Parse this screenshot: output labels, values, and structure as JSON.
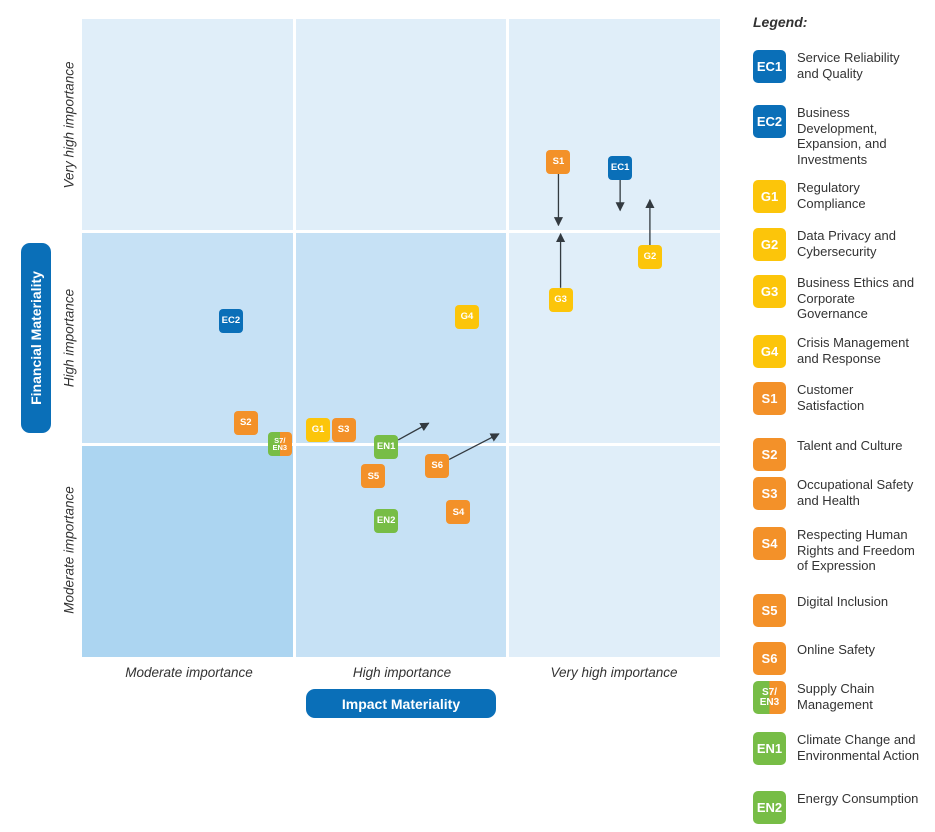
{
  "chart_data": {
    "type": "scatter",
    "title": "",
    "subtitle": "",
    "xlabel": "Impact Materiality",
    "ylabel": "Financial Materiality",
    "x_levels": [
      "Moderate importance",
      "High importance",
      "Very high importance"
    ],
    "y_levels": [
      "Moderate importance",
      "High importance",
      "Very high importance"
    ],
    "xlim": [
      0,
      3
    ],
    "ylim": [
      0,
      3
    ],
    "grid": true,
    "legend_title": "Legend:",
    "legend_position": "right",
    "categories_colors": {
      "EC": "#0a6fb8",
      "G": "#fcc50a",
      "S": "#f39129",
      "EN": "#77bd46"
    },
    "cell_colors": {
      "moderate_moderate": "#acd5f1",
      "high_zone": "#c6e1f5",
      "very_high_zone": "#e0eef9",
      "gridline": "#ffffff"
    },
    "points": [
      {
        "code": "EC1",
        "group": "EC",
        "x": 2.53,
        "y": 2.3
      },
      {
        "code": "EC2",
        "group": "EC",
        "x": 0.7,
        "y": 1.58
      },
      {
        "code": "G1",
        "group": "G",
        "x": 1.11,
        "y": 1.07
      },
      {
        "code": "G2",
        "group": "G",
        "x": 2.67,
        "y": 1.88
      },
      {
        "code": "G3",
        "group": "G",
        "x": 2.25,
        "y": 1.68
      },
      {
        "code": "G4",
        "group": "G",
        "x": 1.81,
        "y": 1.6
      },
      {
        "code": "S1",
        "group": "S",
        "x": 2.24,
        "y": 2.33
      },
      {
        "code": "S2",
        "group": "S",
        "x": 0.77,
        "y": 1.1
      },
      {
        "code": "S3",
        "group": "S",
        "x": 1.23,
        "y": 1.07
      },
      {
        "code": "S4",
        "group": "S",
        "x": 1.77,
        "y": 0.68
      },
      {
        "code": "S5",
        "group": "S",
        "x": 1.37,
        "y": 0.85
      },
      {
        "code": "S6",
        "group": "S",
        "x": 1.67,
        "y": 0.9
      },
      {
        "code": "S7/ EN3",
        "group": "split",
        "x": 0.93,
        "y": 1.0
      },
      {
        "code": "EN1",
        "group": "EN",
        "x": 1.43,
        "y": 0.99
      },
      {
        "code": "EN2",
        "group": "EN",
        "x": 1.43,
        "y": 0.64
      }
    ],
    "movement_arrows": [
      {
        "from": "S1",
        "to": [
          2.24,
          2.03
        ]
      },
      {
        "from": "EC1",
        "to": [
          2.53,
          2.1
        ]
      },
      {
        "from": "G2",
        "to": [
          2.67,
          2.15
        ]
      },
      {
        "from": "G3",
        "to": [
          2.25,
          1.99
        ]
      },
      {
        "from": "EN1",
        "to": [
          1.63,
          1.1
        ]
      },
      {
        "from": "S6",
        "to": [
          1.96,
          1.05
        ]
      }
    ]
  },
  "legend": [
    {
      "code": "EC1",
      "group": "EC",
      "label": "Service Reliability and Quality"
    },
    {
      "code": "EC2",
      "group": "EC",
      "label": "Business Development, Expansion, and Investments"
    },
    {
      "code": "G1",
      "group": "G",
      "label": "Regulatory Compliance"
    },
    {
      "code": "G2",
      "group": "G",
      "label": "Data Privacy and Cybersecurity"
    },
    {
      "code": "G3",
      "group": "G",
      "label": "Business Ethics and Corporate Governance"
    },
    {
      "code": "G4",
      "group": "G",
      "label": "Crisis Management and Response"
    },
    {
      "code": "S1",
      "group": "S",
      "label": "Customer Satisfaction"
    },
    {
      "code": "S2",
      "group": "S",
      "label": "Talent and Culture"
    },
    {
      "code": "S3",
      "group": "S",
      "label": "Occupational Safety and Health"
    },
    {
      "code": "S4",
      "group": "S",
      "label": "Respecting Human Rights and Freedom of Expression"
    },
    {
      "code": "S5",
      "group": "S",
      "label": "Digital Inclusion"
    },
    {
      "code": "S6",
      "group": "S",
      "label": "Online Safety"
    },
    {
      "code": "S7/ EN3",
      "group": "split",
      "label": "Supply Chain Management"
    },
    {
      "code": "EN1",
      "group": "EN",
      "label": "Climate Change and Environmental Action"
    },
    {
      "code": "EN2",
      "group": "EN",
      "label": "Energy Consumption"
    }
  ]
}
